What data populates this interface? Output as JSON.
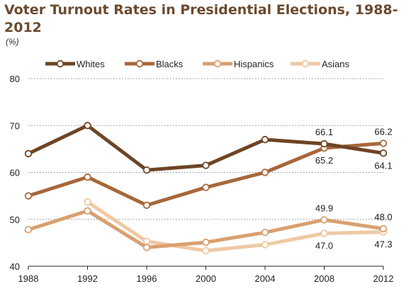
{
  "chart_data": {
    "type": "line",
    "title": "Voter Turnout Rates in Presidential Elections, 1988-2012",
    "unit_label": "(%)",
    "xlabel": "",
    "ylabel": "",
    "x": [
      "1988",
      "1992",
      "1996",
      "2000",
      "2004",
      "2008",
      "2012"
    ],
    "ylim": [
      40,
      80
    ],
    "yticks": [
      40,
      50,
      60,
      70,
      80
    ],
    "grid": "horizontal dotted",
    "legend_position": "top",
    "series": [
      {
        "name": "Whites",
        "color": "#6e4424",
        "values": [
          64.0,
          70.0,
          60.5,
          61.5,
          67.0,
          66.1,
          64.1
        ]
      },
      {
        "name": "Blacks",
        "color": "#a8673a",
        "values": [
          55.0,
          59.0,
          53.0,
          56.8,
          60.0,
          65.2,
          66.2
        ]
      },
      {
        "name": "Hispanics",
        "color": "#d9a070",
        "values": [
          47.8,
          51.8,
          44.0,
          45.1,
          47.2,
          49.9,
          48.0
        ]
      },
      {
        "name": "Asians",
        "color": "#efc9a2",
        "values": [
          null,
          53.7,
          45.3,
          43.3,
          44.6,
          47.0,
          47.3
        ]
      }
    ],
    "annotations": [
      {
        "series": "Whites",
        "x": "2008",
        "text": "66.1",
        "pos": "above"
      },
      {
        "series": "Blacks",
        "x": "2012",
        "text": "66.2",
        "pos": "above"
      },
      {
        "series": "Blacks",
        "x": "2008",
        "text": "65.2",
        "pos": "below"
      },
      {
        "series": "Whites",
        "x": "2012",
        "text": "64.1",
        "pos": "below"
      },
      {
        "series": "Hispanics",
        "x": "2008",
        "text": "49.9",
        "pos": "above"
      },
      {
        "series": "Hispanics",
        "x": "2012",
        "text": "48.0",
        "pos": "above"
      },
      {
        "series": "Asians",
        "x": "2008",
        "text": "47.0",
        "pos": "below"
      },
      {
        "series": "Asians",
        "x": "2012",
        "text": "47.3",
        "pos": "below"
      }
    ]
  }
}
